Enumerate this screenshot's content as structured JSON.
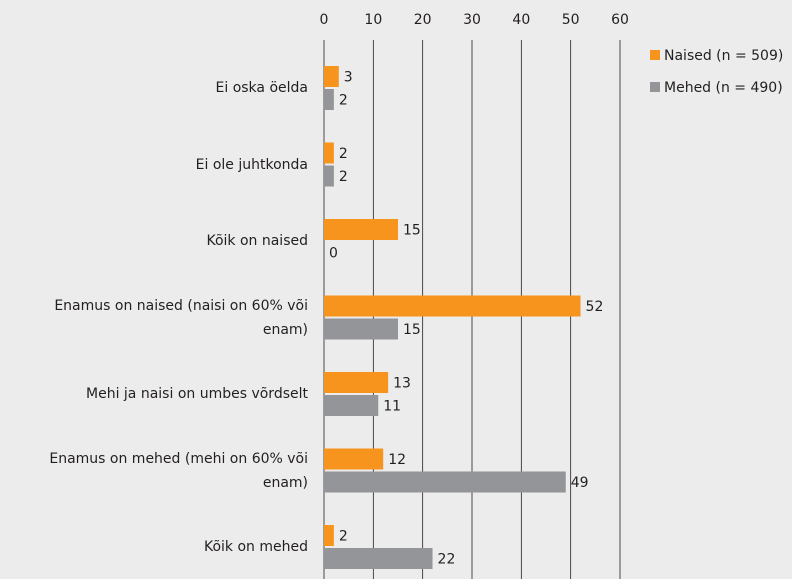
{
  "chart_data": {
    "type": "hbar",
    "categories": [
      "Ei oska öelda",
      "Ei ole juhtkonda",
      "Kõik on naised",
      "Enamus on naised (naisi on 60% või enam)",
      "Mehi ja naisi on umbes võrdselt",
      "Enamus on mehed (mehi on 60% või enam)",
      "Kõik on mehed"
    ],
    "series": [
      {
        "name": "Naised (n = 509)",
        "color": "#f7941d",
        "values": [
          3,
          2,
          15,
          52,
          13,
          12,
          2
        ]
      },
      {
        "name": "Mehed (n = 490)",
        "color": "#939598",
        "values": [
          2,
          2,
          0,
          15,
          11,
          49,
          22
        ]
      }
    ],
    "xlim": [
      0,
      60
    ],
    "xticks": [
      0,
      10,
      20,
      30,
      40,
      50,
      60
    ],
    "grid": true,
    "legend": "top-right"
  }
}
